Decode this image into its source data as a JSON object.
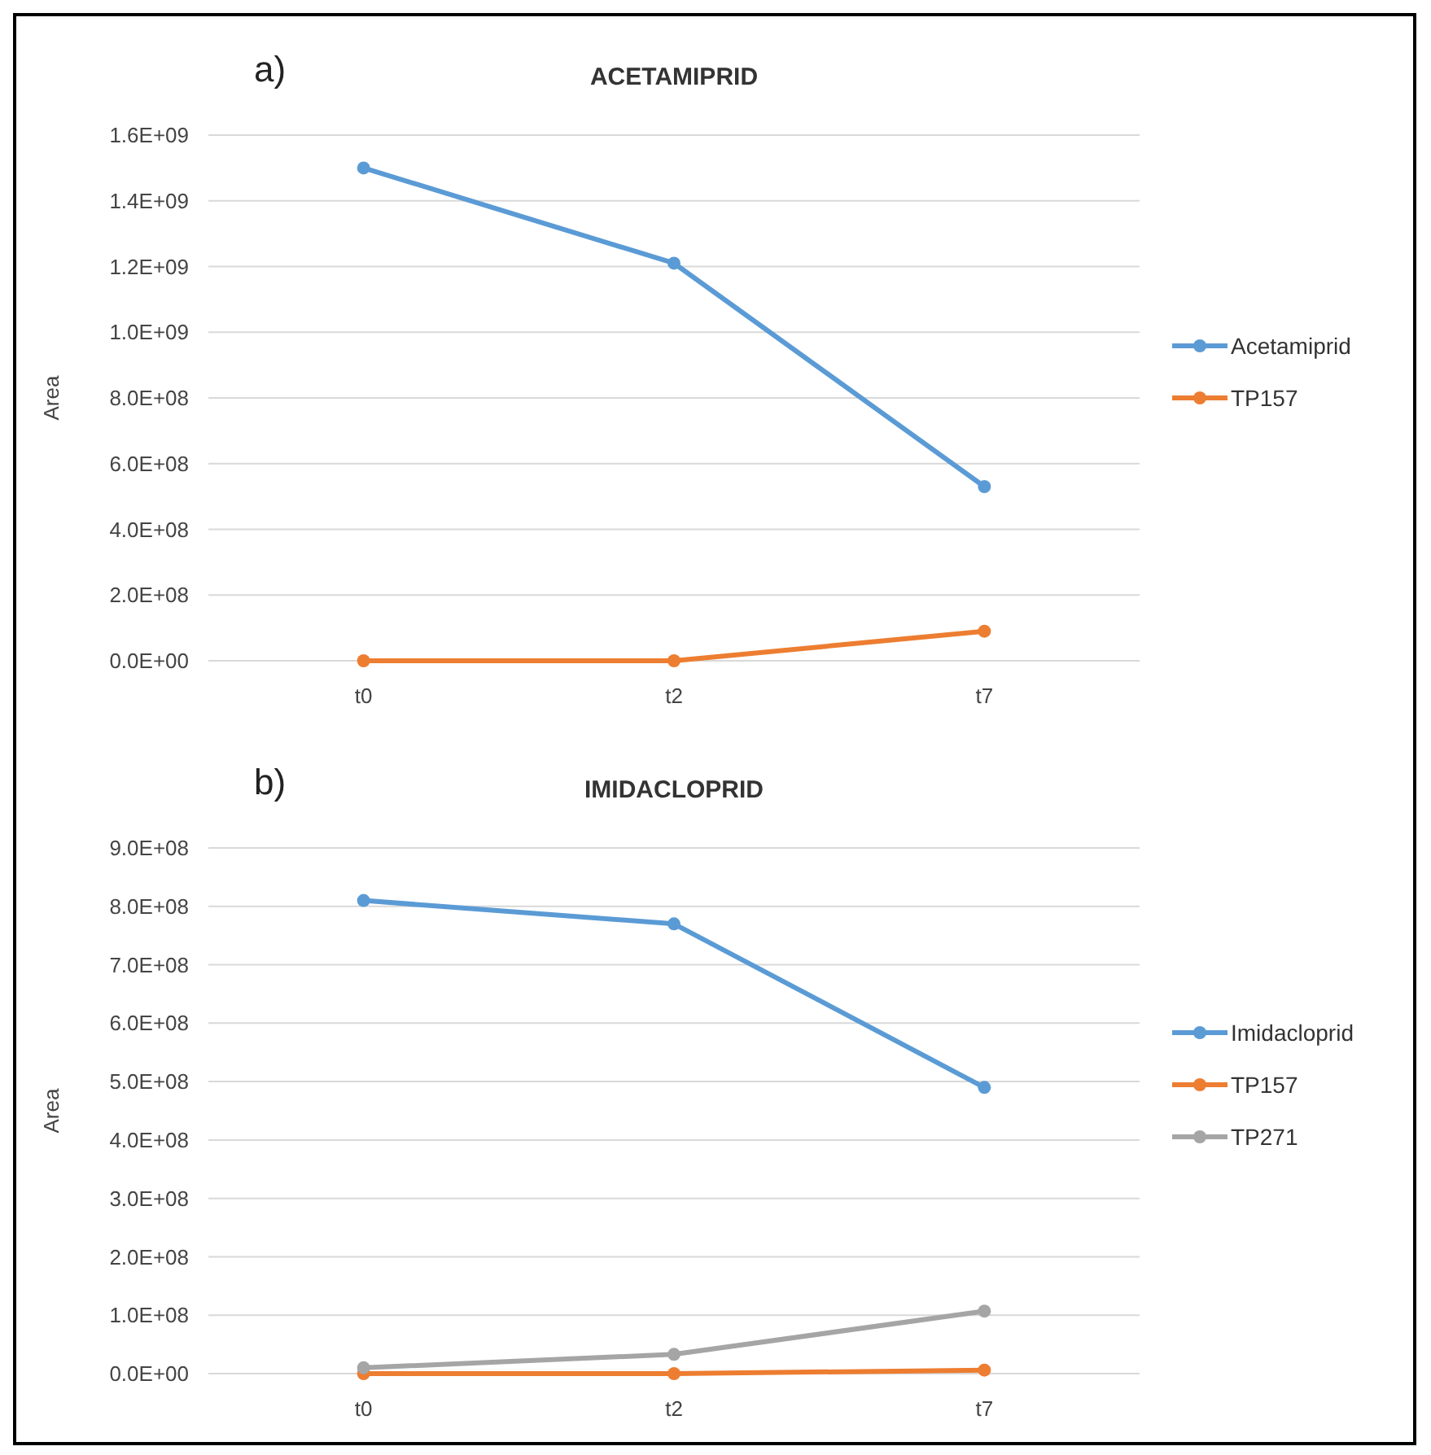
{
  "chart_data": [
    {
      "type": "line",
      "title": "ACETAMIPRID",
      "ylabel": "Area",
      "annotations": [
        "a)"
      ],
      "categories": [
        "t0",
        "t2",
        "t7"
      ],
      "series": [
        {
          "name": "Acetamiprid",
          "color": "#5b9bd5",
          "values": [
            1500000000.0,
            1210000000.0,
            530000000.0
          ]
        },
        {
          "name": "TP157",
          "color": "#ed7d31",
          "values": [
            0,
            0,
            90000000.0
          ]
        }
      ],
      "ylim": [
        0,
        1600000000.0
      ],
      "yticks": [
        {
          "value": 0,
          "label": "0.0E+00"
        },
        {
          "value": 200000000.0,
          "label": "2.0E+08"
        },
        {
          "value": 400000000.0,
          "label": "4.0E+08"
        },
        {
          "value": 600000000.0,
          "label": "6.0E+08"
        },
        {
          "value": 800000000.0,
          "label": "8.0E+08"
        },
        {
          "value": 1000000000.0,
          "label": "1.0E+09"
        },
        {
          "value": 1200000000.0,
          "label": "1.2E+09"
        },
        {
          "value": 1400000000.0,
          "label": "1.4E+09"
        },
        {
          "value": 1600000000.0,
          "label": "1.6E+09"
        }
      ],
      "grid": "y",
      "legend": "right",
      "marker": "circle",
      "line_style": "solid"
    },
    {
      "type": "line",
      "title": "IMIDACLOPRID",
      "ylabel": "Area",
      "annotations": [
        "b)"
      ],
      "categories": [
        "t0",
        "t2",
        "t7"
      ],
      "series": [
        {
          "name": "Imidacloprid",
          "color": "#5b9bd5",
          "values": [
            810000000.0,
            770000000.0,
            490000000.0
          ]
        },
        {
          "name": "TP157",
          "color": "#ed7d31",
          "values": [
            0,
            0,
            6000000.0
          ]
        },
        {
          "name": "TP271",
          "color": "#a5a5a5",
          "values": [
            10000000.0,
            33000000.0,
            107000000.0
          ]
        }
      ],
      "ylim": [
        0,
        900000000.0
      ],
      "yticks": [
        {
          "value": 0,
          "label": "0.0E+00"
        },
        {
          "value": 100000000.0,
          "label": "1.0E+08"
        },
        {
          "value": 200000000.0,
          "label": "2.0E+08"
        },
        {
          "value": 300000000.0,
          "label": "3.0E+08"
        },
        {
          "value": 400000000.0,
          "label": "4.0E+08"
        },
        {
          "value": 500000000.0,
          "label": "5.0E+08"
        },
        {
          "value": 600000000.0,
          "label": "6.0E+08"
        },
        {
          "value": 700000000.0,
          "label": "7.0E+08"
        },
        {
          "value": 800000000.0,
          "label": "8.0E+08"
        },
        {
          "value": 900000000.0,
          "label": "9.0E+08"
        }
      ],
      "grid": "y",
      "legend": "right",
      "marker": "circle",
      "line_style": "solid"
    }
  ]
}
